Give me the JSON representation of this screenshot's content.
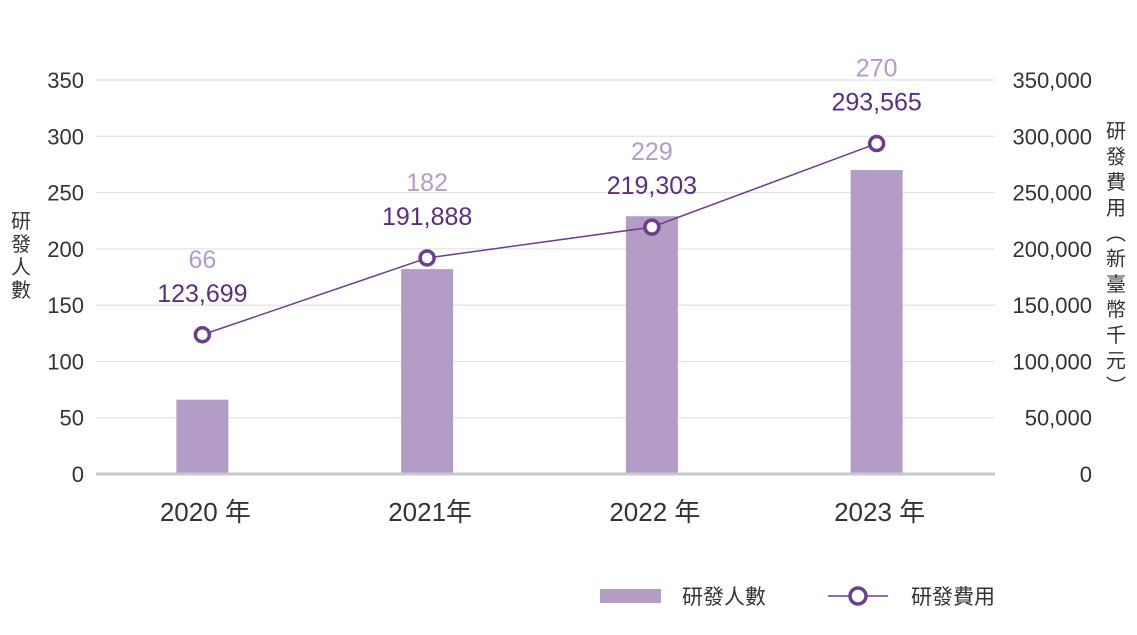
{
  "colors": {
    "bar": "#b39dc6",
    "bar_label": "#b39dc6",
    "line": "#6b3f8e",
    "line_label": "#5b2f80",
    "grid": "#dddddd",
    "axis": "#c8c8c8",
    "text": "#333333"
  },
  "chart_data": {
    "type": "bar",
    "categories": [
      "2020 年",
      "2021年",
      "2022 年",
      "2023 年"
    ],
    "series": [
      {
        "name": "研發人數",
        "type": "bar",
        "axis": "left",
        "values": [
          66,
          182,
          229,
          270
        ]
      },
      {
        "name": "研發費用",
        "type": "line",
        "axis": "right",
        "values": [
          123699,
          191888,
          219303,
          293565
        ]
      }
    ],
    "bar_labels": [
      "66",
      "182",
      "229",
      "270"
    ],
    "line_labels": [
      "123,699",
      "191,888",
      "219,303",
      "293,565"
    ],
    "y_left": {
      "label_chars": [
        "研",
        "發",
        "人",
        "數"
      ],
      "ticks": [
        0,
        50,
        100,
        150,
        200,
        250,
        300,
        350
      ],
      "tick_labels": [
        "0",
        "50",
        "100",
        "150",
        "200",
        "250",
        "300",
        "350"
      ],
      "ylim": [
        0,
        350
      ]
    },
    "y_right": {
      "label_chars": [
        "研",
        "發",
        "費",
        "用",
        "︵",
        "新",
        "臺",
        "幣",
        "千",
        "元",
        "︶"
      ],
      "ticks": [
        0,
        50000,
        100000,
        150000,
        200000,
        250000,
        300000,
        350000
      ],
      "tick_labels": [
        "0",
        "50,000",
        "100,000",
        "150,000",
        "200,000",
        "250,000",
        "300,000",
        "350,000"
      ],
      "ylim": [
        0,
        350000
      ]
    },
    "grid": true,
    "legend": {
      "position": "bottom-right",
      "items": [
        "研發人數",
        "研發費用"
      ]
    }
  }
}
